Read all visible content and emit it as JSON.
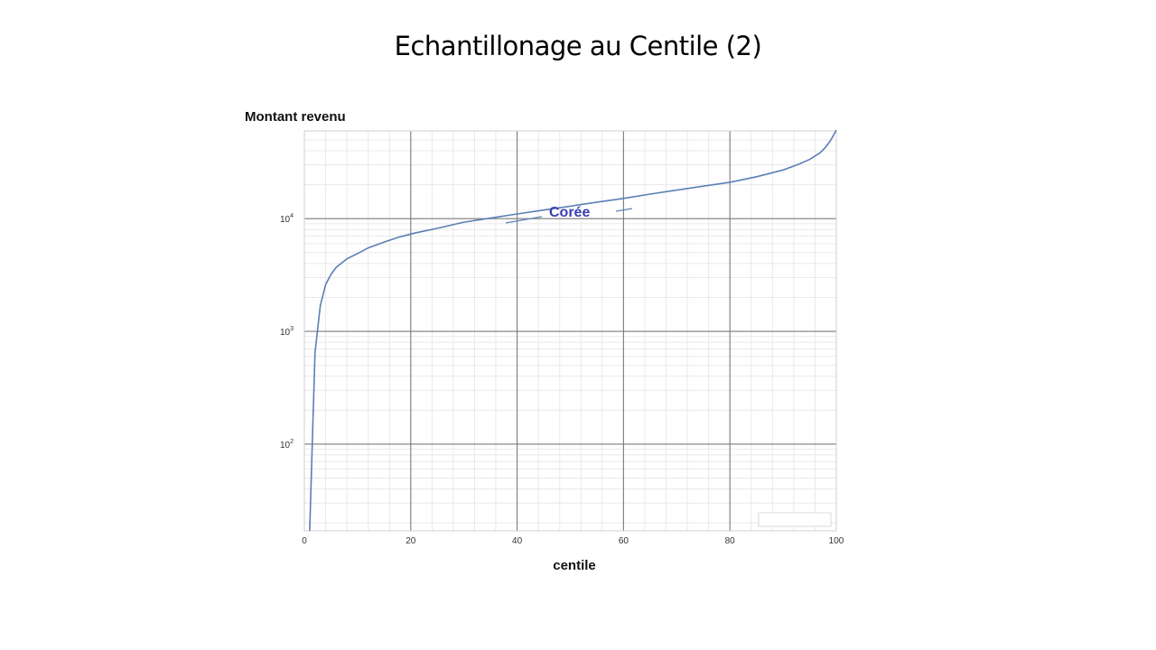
{
  "slide": {
    "title": "Echantillonage au Centile (2)"
  },
  "chart_data": {
    "type": "line",
    "title": "",
    "xlabel": "centile",
    "ylabel": "Montant revenu",
    "yscale": "log",
    "xlim": [
      0,
      100
    ],
    "ylim": [
      17,
      60000
    ],
    "x_ticks": [
      0,
      20,
      40,
      60,
      80,
      100
    ],
    "y_ticks": [
      {
        "value": 100,
        "base": "10",
        "exp": "2"
      },
      {
        "value": 1000,
        "base": "10",
        "exp": "3"
      },
      {
        "value": 10000,
        "base": "10",
        "exp": "4"
      }
    ],
    "grid": true,
    "line_color": "#5b7fb5",
    "annotation_color": "#3b3fb0",
    "series": [
      {
        "name": "Corée",
        "x": [
          1,
          2,
          3,
          4,
          5,
          6,
          8,
          10,
          12,
          15,
          18,
          21,
          25,
          30,
          35,
          40,
          45,
          50,
          55,
          60,
          65,
          70,
          75,
          80,
          85,
          90,
          93,
          95,
          97,
          98,
          99,
          100
        ],
        "y": [
          17,
          650,
          1700,
          2600,
          3200,
          3700,
          4400,
          4900,
          5500,
          6200,
          6900,
          7500,
          8200,
          9300,
          10100,
          11000,
          11900,
          12900,
          14000,
          15100,
          16500,
          17900,
          19400,
          21000,
          23500,
          27000,
          30500,
          33500,
          38500,
          43000,
          50000,
          61000
        ]
      }
    ]
  }
}
